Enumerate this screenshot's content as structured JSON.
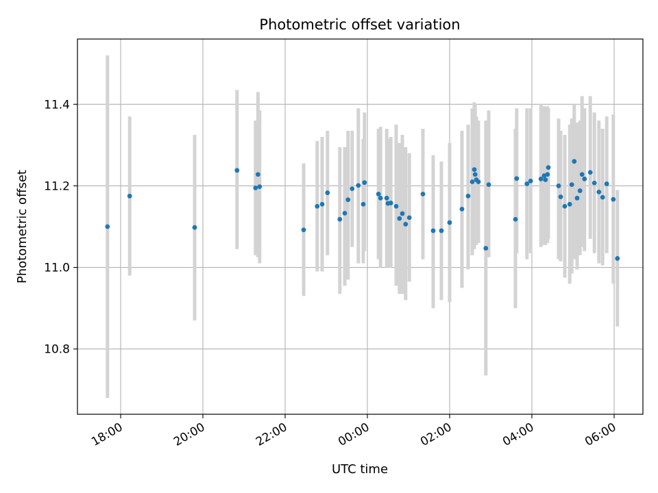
{
  "chart_data": {
    "type": "scatter",
    "title": "Photometric offset variation",
    "xlabel": "UTC time",
    "ylabel": "Photometric offset",
    "grid": true,
    "xlim_hours": [
      16.95,
      30.7
    ],
    "ylim": [
      10.64,
      11.56
    ],
    "x_ticks": [
      {
        "h": 18,
        "label": "18:00"
      },
      {
        "h": 20,
        "label": "20:00"
      },
      {
        "h": 22,
        "label": "22:00"
      },
      {
        "h": 24,
        "label": "00:00"
      },
      {
        "h": 26,
        "label": "02:00"
      },
      {
        "h": 28,
        "label": "04:00"
      },
      {
        "h": 30,
        "label": "06:00"
      }
    ],
    "y_ticks": [
      {
        "v": 10.8,
        "label": "10.8"
      },
      {
        "v": 11.0,
        "label": "11.0"
      },
      {
        "v": 11.2,
        "label": "11.2"
      },
      {
        "v": 11.4,
        "label": "11.4"
      }
    ],
    "colors": {
      "point": "#1f77b4",
      "errorbar": "#d3d3d3",
      "grid": "#b0b0b0",
      "axes": "#000000"
    },
    "series": [
      {
        "x_hours": [
          17.68,
          18.22,
          19.8,
          20.83,
          21.28,
          21.34,
          21.38,
          22.45,
          22.78,
          22.9,
          23.03,
          23.33,
          23.45,
          23.53,
          23.63,
          23.78,
          23.9,
          23.93,
          24.27,
          24.32,
          24.47,
          24.5,
          24.57,
          24.7,
          24.78,
          24.85,
          24.93,
          25.02,
          25.35,
          25.6,
          25.8,
          26.0,
          26.3,
          26.45,
          26.55,
          26.6,
          26.62,
          26.65,
          26.7,
          26.88,
          26.95,
          27.6,
          27.63,
          27.88,
          27.97,
          28.22,
          28.3,
          28.33,
          28.38,
          28.4,
          28.65,
          28.7,
          28.8,
          28.92,
          28.97,
          29.03,
          29.1,
          29.17,
          29.22,
          29.28,
          29.42,
          29.52,
          29.63,
          29.72,
          29.82,
          29.98,
          30.08
        ],
        "y": [
          11.1,
          11.175,
          11.098,
          11.238,
          11.195,
          11.228,
          11.198,
          11.092,
          11.15,
          11.155,
          11.183,
          11.118,
          11.133,
          11.166,
          11.193,
          11.201,
          11.155,
          11.208,
          11.18,
          11.17,
          11.17,
          11.157,
          11.158,
          11.15,
          11.12,
          11.132,
          11.106,
          11.122,
          11.18,
          11.09,
          11.09,
          11.11,
          11.143,
          11.175,
          11.21,
          11.24,
          11.228,
          11.215,
          11.21,
          11.047,
          11.203,
          11.118,
          11.218,
          11.205,
          11.212,
          11.217,
          11.225,
          11.215,
          11.228,
          11.245,
          11.2,
          11.173,
          11.15,
          11.155,
          11.203,
          11.26,
          11.17,
          11.188,
          11.228,
          11.217,
          11.233,
          11.207,
          11.185,
          11.172,
          11.205,
          11.167,
          11.022
        ],
        "y_low": [
          10.68,
          10.98,
          10.87,
          11.045,
          11.03,
          11.025,
          11.01,
          10.93,
          10.99,
          10.99,
          11.03,
          10.935,
          10.955,
          10.97,
          11.05,
          11.01,
          11.01,
          11.04,
          11.02,
          11.0,
          11.0,
          11.0,
          11.0,
          10.955,
          10.935,
          10.935,
          10.92,
          10.965,
          11.02,
          10.9,
          10.92,
          10.915,
          10.95,
          10.995,
          11.03,
          11.045,
          11.06,
          11.055,
          11.06,
          10.735,
          11.025,
          10.9,
          11.035,
          11.02,
          11.035,
          11.05,
          11.055,
          11.055,
          11.06,
          11.07,
          11.02,
          11.015,
          10.975,
          10.96,
          10.985,
          11.02,
          10.995,
          11.03,
          11.05,
          11.04,
          11.07,
          11.035,
          11.01,
          11.005,
          11.035,
          10.96,
          10.855
        ],
        "y_high": [
          11.52,
          11.37,
          11.325,
          11.435,
          11.36,
          11.43,
          11.385,
          11.255,
          11.31,
          11.32,
          11.335,
          11.295,
          11.295,
          11.335,
          11.335,
          11.39,
          11.315,
          11.38,
          11.34,
          11.345,
          11.34,
          11.315,
          11.32,
          11.35,
          11.305,
          11.325,
          11.295,
          11.28,
          11.34,
          11.275,
          11.26,
          11.305,
          11.335,
          11.35,
          11.39,
          11.405,
          11.4,
          11.37,
          11.36,
          11.36,
          11.385,
          11.34,
          11.39,
          11.39,
          11.39,
          11.4,
          11.395,
          11.39,
          11.395,
          11.39,
          11.365,
          11.335,
          11.325,
          11.35,
          11.365,
          11.4,
          11.355,
          11.36,
          11.42,
          11.39,
          11.42,
          11.38,
          11.36,
          11.34,
          11.37,
          11.375,
          11.19
        ]
      }
    ]
  }
}
